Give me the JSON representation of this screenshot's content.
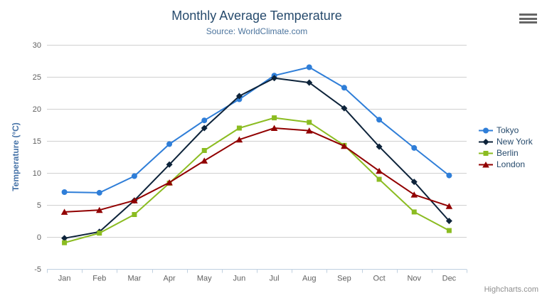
{
  "header": {
    "title": "Monthly Average Temperature",
    "subtitle": "Source: WorldClimate.com"
  },
  "export_menu": {
    "icon": "hamburger-menu-icon"
  },
  "credits": {
    "text": "Highcharts.com"
  },
  "chart_data": {
    "type": "line",
    "title": "Monthly Average Temperature",
    "subtitle": "Source: WorldClimate.com",
    "categories": [
      "Jan",
      "Feb",
      "Mar",
      "Apr",
      "May",
      "Jun",
      "Jul",
      "Aug",
      "Sep",
      "Oct",
      "Nov",
      "Dec"
    ],
    "xlabel": "",
    "ylabel": "Temperature (°C)",
    "ylim": [
      -5,
      30
    ],
    "yticks": [
      30,
      25,
      20,
      15,
      10,
      5,
      0,
      -5
    ],
    "grid": "horizontal",
    "legend_position": "right",
    "legend_items": [
      "Tokyo",
      "New York",
      "Berlin",
      "London"
    ],
    "series": [
      {
        "name": "Tokyo",
        "color": "#2f7ed8",
        "marker": "circle",
        "values": [
          7.0,
          6.9,
          9.5,
          14.5,
          18.2,
          21.5,
          25.2,
          26.5,
          23.3,
          18.3,
          13.9,
          9.6
        ]
      },
      {
        "name": "New York",
        "color": "#0d233a",
        "marker": "diamond",
        "values": [
          -0.2,
          0.8,
          5.7,
          11.3,
          17.0,
          22.0,
          24.8,
          24.1,
          20.1,
          14.1,
          8.6,
          2.5
        ]
      },
      {
        "name": "Berlin",
        "color": "#8bbc21",
        "marker": "square",
        "values": [
          -0.9,
          0.6,
          3.5,
          8.4,
          13.5,
          17.0,
          18.6,
          17.9,
          14.3,
          9.0,
          3.9,
          1.0
        ]
      },
      {
        "name": "London",
        "color": "#910000",
        "marker": "triangle",
        "values": [
          3.9,
          4.2,
          5.7,
          8.5,
          11.9,
          15.2,
          17.0,
          16.6,
          14.2,
          10.3,
          6.6,
          4.8
        ]
      }
    ],
    "colors": {
      "grid": "#d0d0d0",
      "axis_line": "#c0d0e0",
      "label": "#606060",
      "title": "#274b6d",
      "subtitle": "#4d759e",
      "axis_title": "#4572a7",
      "legend_text": "#274b6d",
      "credits_text": "#8f8f8f"
    }
  }
}
